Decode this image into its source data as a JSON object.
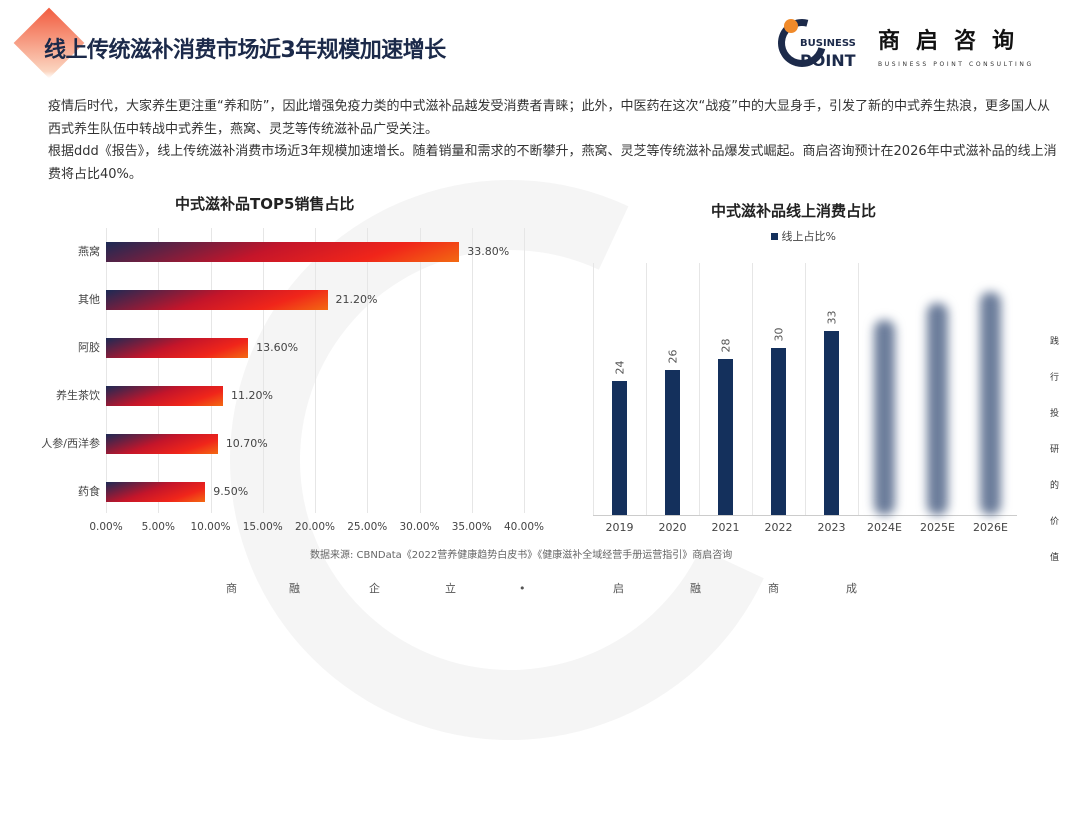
{
  "header": {
    "title": "线上传统滋补消费市场近3年规模加速增长"
  },
  "logo": {
    "mark_top": "BUSINESS",
    "mark_bottom": "POINT",
    "cn": "商启咨询",
    "en": "BUSINESS POINT CONSULTING"
  },
  "body": {
    "paragraphs": [
      "疫情后时代，大家养生更注重“养和防”，因此增强免疫力类的中式滋补品越发受消费者青睐；此外，中医药在这次“战疫”中的大显身手，引发了新的中式养生热浪，更多国人从西式养生队伍中转战中式养生，燕窝、灵芝等传统滋补品广受关注。",
      "根据ddd《报告》，线上传统滋补消费市场近3年规模加速增长。随着销量和需求的不断攀升，燕窝、灵芝等传统滋补品爆发式崛起。商启咨询预计在2026年中式滋补品的线上消费将占比40%。"
    ]
  },
  "chart_data": [
    {
      "type": "bar",
      "orientation": "horizontal",
      "title": "中式滋补品TOP5销售占比",
      "categories": [
        "燕窝",
        "其他",
        "阿胶",
        "养生茶饮",
        "人参/西洋参",
        "药食"
      ],
      "values": [
        33.8,
        21.2,
        13.6,
        11.2,
        10.7,
        9.5
      ],
      "data_labels": [
        "33.80%",
        "21.20%",
        "13.60%",
        "11.20%",
        "10.70%",
        "9.50%"
      ],
      "xlim": [
        0,
        40
      ],
      "x_ticks": [
        "0.00%",
        "5.00%",
        "10.00%",
        "15.00%",
        "20.00%",
        "25.00%",
        "30.00%",
        "35.00%",
        "40.00%"
      ],
      "grid": true,
      "bar_color": "gradient #1c2a55 → #f0251a → #f36a12"
    },
    {
      "type": "bar",
      "title": "中式滋补品线上消费占比",
      "legend": "top",
      "series": [
        {
          "name": "线上占比%",
          "values": [
            24,
            26,
            28,
            30,
            33,
            35,
            38,
            40
          ]
        }
      ],
      "categories": [
        "2019",
        "2020",
        "2021",
        "2022",
        "2023",
        "2024E",
        "2025E",
        "2026E"
      ],
      "data_labels": [
        "24",
        "26",
        "28",
        "30",
        "33"
      ],
      "blurred_categories": [
        "2024E",
        "2025E",
        "2026E"
      ],
      "grid": true,
      "bar_color": "#14305c"
    }
  ],
  "source": "数据来源: CBNData《2022营养健康趋势白皮书》《健康滋补全域经营手册运营指引》商启咨询",
  "side_slogan": [
    "践",
    "行",
    "投",
    "研",
    "的",
    "价",
    "值"
  ],
  "footer_slogan": [
    "商",
    "融",
    "企",
    "立",
    "•",
    "启",
    "融",
    "商",
    "成"
  ],
  "watermark": [
    "BUSINESS",
    "POINT"
  ]
}
